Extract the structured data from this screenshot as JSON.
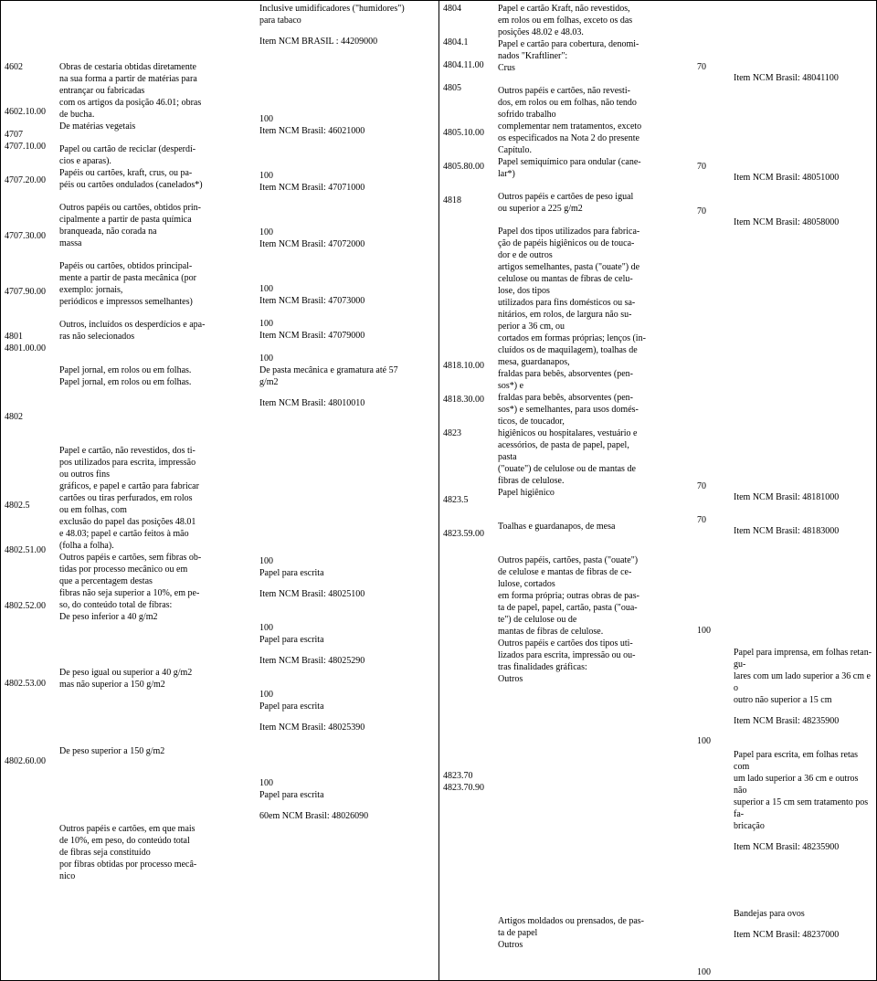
{
  "left": {
    "codes": [
      {
        "gap": 64,
        "t": "4602"
      },
      {
        "gap": 36,
        "t": "4602.10.00"
      },
      {
        "gap": 12,
        "t": "4707"
      },
      {
        "gap": 0,
        "t": "4707.10.00"
      },
      {
        "gap": 24,
        "t": "4707.20.00"
      },
      {
        "gap": 48,
        "t": "4707.30.00"
      },
      {
        "gap": 48,
        "t": "4707.90.00"
      },
      {
        "gap": 36,
        "t": "4801"
      },
      {
        "gap": 0,
        "t": "4801.00.00"
      },
      {
        "gap": 62,
        "t": "4802"
      },
      {
        "gap": 84,
        "t": "4802.5"
      },
      {
        "gap": 36,
        "t": "4802.51.00"
      },
      {
        "gap": 48,
        "t": "4802.52.00"
      },
      {
        "gap": 72,
        "t": "4802.53.00"
      },
      {
        "gap": 72,
        "t": "4802.60.00"
      }
    ],
    "descs": [
      {
        "gap": 64,
        "lines": [
          "Obras de cestaria obtidas diretamente",
          "na sua forma a partir de matérias para",
          "entrançar ou fabricadas",
          "com os artigos da posição 46.01; obras",
          "de bucha."
        ]
      },
      {
        "gap": 0,
        "lines": [
          "De matérias vegetais"
        ]
      },
      {
        "gap": 12,
        "lines": [
          "Papel ou cartão de reciclar (desperdí-",
          "cios e aparas)."
        ]
      },
      {
        "gap": 0,
        "lines": [
          "Papéis ou cartões, kraft, crus, ou pa-",
          "péis ou cartões ondulados (canelados*)"
        ]
      },
      {
        "gap": 12,
        "lines": [
          "Outros papéis ou cartões, obtidos prin-",
          "cipalmente a partir de pasta química",
          "branqueada, não corada na",
          "massa"
        ]
      },
      {
        "gap": 12,
        "lines": [
          "Papéis ou cartões, obtidos principal-",
          "mente a partir de pasta mecânica (por",
          "exemplo: jornais,",
          "periódicos e impressos semelhantes)"
        ]
      },
      {
        "gap": 12,
        "lines": [
          "Outros, incluídos os desperdícios e apa-",
          "ras não selecionados"
        ]
      },
      {
        "gap": 24,
        "lines": [
          "Papel jornal, em rolos ou em folhas."
        ]
      },
      {
        "gap": 0,
        "lines": [
          "Papel jornal, em rolos ou em folhas."
        ]
      },
      {
        "gap": 62,
        "lines": [
          "Papel e cartão, não revestidos, dos ti-",
          "pos utilizados para escrita, impressão",
          "ou outros fins",
          "gráficos, e papel e cartão para fabricar",
          "cartões ou tiras perfurados, em rolos",
          "ou em folhas, com",
          "exclusão do papel das posições 48.01",
          "e 48.03; papel e cartão feitos à mão",
          "(folha a folha)."
        ]
      },
      {
        "gap": 0,
        "lines": [
          "Outros papéis e cartões, sem fibras ob-",
          "tidas por processo mecânico ou em",
          "que a percentagem destas",
          "fibras não seja superior a 10%, em pe-",
          "so, do conteúdo total de fibras:"
        ]
      },
      {
        "gap": 0,
        "lines": [
          "De peso inferior a 40 g/m2"
        ]
      },
      {
        "gap": 48,
        "lines": [
          "De peso igual ou superior a 40 g/m2",
          "mas não superior a 150 g/m2"
        ]
      },
      {
        "gap": 60,
        "lines": [
          "De peso superior a 150 g/m2"
        ]
      },
      {
        "gap": 72,
        "lines": [
          "Outros papéis e cartões, em que mais",
          "de 10%, em peso, do conteúdo total",
          "de fibras seja constituído",
          "por fibras obtidas por processo mecâ-",
          "nico"
        ]
      }
    ],
    "qtyNcm": [
      {
        "gap": 0,
        "lines": [
          "Inclusive umidificadores (\"humidores\")",
          "para tabaco"
        ]
      },
      {
        "gap": 10,
        "lines": [
          "Item NCM BRASIL : 44209000"
        ]
      },
      {
        "gap": 72,
        "qty": "100"
      },
      {
        "gap": 0,
        "lines": [
          "Item NCM Brasil: 46021000"
        ]
      },
      {
        "gap": 36,
        "qty": "100"
      },
      {
        "gap": 0,
        "lines": [
          "Item NCM Brasil: 47071000"
        ]
      },
      {
        "gap": 36,
        "qty": "100"
      },
      {
        "gap": 0,
        "lines": [
          "Item NCM Brasil: 47072000"
        ]
      },
      {
        "gap": 36,
        "qty": "100"
      },
      {
        "gap": 0,
        "lines": [
          "Item NCM Brasil: 47073000"
        ]
      },
      {
        "gap": 12,
        "qty": "100"
      },
      {
        "gap": 0,
        "lines": [
          "Item NCM Brasil: 47079000"
        ]
      },
      {
        "gap": 12,
        "qty": "100"
      },
      {
        "gap": 0,
        "lines": [
          "De pasta mecânica e gramatura até 57",
          "g/m2"
        ]
      },
      {
        "gap": 10,
        "lines": [
          "Item NCM Brasil: 48010010"
        ]
      },
      {
        "gap": 160,
        "qty": "100"
      },
      {
        "gap": 0,
        "lines": [
          "Papel para escrita"
        ]
      },
      {
        "gap": 10,
        "lines": [
          "Item NCM Brasil: 48025100"
        ]
      },
      {
        "gap": 24,
        "qty": "100"
      },
      {
        "gap": 0,
        "lines": [
          "Papel para escrita"
        ]
      },
      {
        "gap": 10,
        "lines": [
          "Item NCM Brasil: 48025290"
        ]
      },
      {
        "gap": 24,
        "qty": "100"
      },
      {
        "gap": 0,
        "lines": [
          "Papel para escrita"
        ]
      },
      {
        "gap": 10,
        "lines": [
          "Item NCM Brasil: 48025390"
        ]
      },
      {
        "gap": 48,
        "qty": "100"
      },
      {
        "gap": 0,
        "lines": [
          "Papel para escrita"
        ]
      },
      {
        "gap": 10,
        "lines": [
          "60em NCM Brasil: 48026090"
        ]
      }
    ]
  },
  "right": {
    "codes": [
      {
        "gap": 0,
        "t": "4804"
      },
      {
        "gap": 24,
        "t": "4804.1"
      },
      {
        "gap": 12,
        "t": "4804.11.00"
      },
      {
        "gap": 12,
        "t": "4805"
      },
      {
        "gap": 36,
        "t": "4805.10.00"
      },
      {
        "gap": 24,
        "t": "4805.80.00"
      },
      {
        "gap": 24,
        "t": "4818"
      },
      {
        "gap": 168,
        "t": "4818.10.00"
      },
      {
        "gap": 24,
        "t": "4818.30.00"
      },
      {
        "gap": 24,
        "t": "4823"
      },
      {
        "gap": 60,
        "t": "4823.5"
      },
      {
        "gap": 24,
        "t": "4823.59.00"
      },
      {
        "gap": 252,
        "t": "4823.70"
      },
      {
        "gap": 0,
        "t": "4823.70.90"
      }
    ],
    "descs": [
      {
        "gap": 0,
        "lines": [
          "Papel e cartão Kraft, não revestidos,",
          "em rolos ou em folhas, exceto os das",
          "posições 48.02 e 48.03."
        ]
      },
      {
        "gap": 0,
        "lines": [
          "Papel e cartão para cobertura, denomi-",
          "nados \"Kraftliner\":"
        ]
      },
      {
        "gap": 0,
        "lines": [
          "Crus"
        ]
      },
      {
        "gap": 12,
        "lines": [
          "Outros papéis e cartões, não revesti-",
          "dos, em rolos ou em folhas, não tendo",
          "sofrido trabalho",
          "complementar nem tratamentos, exceto",
          "os especificados na Nota 2 do presente",
          "Capítulo."
        ]
      },
      {
        "gap": 0,
        "lines": [
          "Papel semiquímico para ondular (cane-",
          "lar*)"
        ]
      },
      {
        "gap": 12,
        "lines": [
          "Outros papéis e cartões de peso igual",
          "ou superior a 225 g/m2"
        ]
      },
      {
        "gap": 12,
        "lines": [
          "Papel dos tipos utilizados para fabrica-",
          "ção de papéis higiênicos ou de touca-",
          "dor e de outros",
          "artigos semelhantes, pasta (\"ouate\") de",
          "celulose ou mantas de fibras de celu-",
          "lose, dos tipos",
          "utilizados para fins domésticos ou sa-",
          "nitários, em rolos, de largura não su-",
          "perior a 36 cm, ou",
          "cortados em formas próprias; lenços (in-",
          "cluídos os de maquilagem), toalhas de",
          "mesa, guardanapos,",
          "fraldas para bebês, absorventes (pen-",
          "sos*) e",
          "fraldas para bebês, absorventes (pen-",
          "sos*) e semelhantes, para usos domés-",
          "ticos, de toucador,",
          "higiênicos ou hospitalares, vestuário e",
          "acessórios, de pasta de papel, papel,",
          "pasta",
          "(\"ouate\") de celulose ou de mantas de",
          "fibras de celulose."
        ]
      },
      {
        "gap": 0,
        "lines": [
          "Papel higiênico"
        ]
      },
      {
        "gap": 24,
        "lines": [
          "Toalhas e guardanapos, de mesa"
        ]
      },
      {
        "gap": 24,
        "lines": [
          "Outros papéis, cartões, pasta (\"ouate\")",
          "de celulose e mantas de fibras de ce-",
          "lulose, cortados",
          "em forma própria; outras obras de pas-",
          "ta de papel, papel, cartão, pasta (\"oua-",
          "te\") de celulose ou de",
          "mantas de fibras de celulose."
        ]
      },
      {
        "gap": 0,
        "lines": [
          "Outros papéis e cartões dos tipos uti-",
          "lizados para escrita, impressão ou ou-",
          "tras finalidades gráficas:"
        ]
      },
      {
        "gap": 0,
        "lines": [
          "Outros"
        ]
      },
      {
        "gap": 252,
        "lines": [
          "Artigos moldados ou prensados, de pas-",
          "ta de papel"
        ]
      },
      {
        "gap": 0,
        "lines": [
          "Outros"
        ]
      }
    ],
    "qtys": [
      {
        "gap": 64,
        "t": "70"
      },
      {
        "gap": 96,
        "t": "70"
      },
      {
        "gap": 36,
        "t": "70"
      },
      {
        "gap": 288,
        "t": "70"
      },
      {
        "gap": 24,
        "t": "70"
      },
      {
        "gap": 108,
        "t": "100"
      },
      {
        "gap": 108,
        "t": "100"
      },
      {
        "gap": 240,
        "t": "100"
      }
    ],
    "ncms": [
      {
        "gap": 76,
        "lines": [
          "Item NCM Brasil: 48041100"
        ]
      },
      {
        "gap": 96,
        "lines": [
          "Item NCM Brasil: 48051000"
        ]
      },
      {
        "gap": 36,
        "lines": [
          "Item NCM Brasil: 48058000"
        ]
      },
      {
        "gap": 288,
        "lines": [
          "Item NCM Brasil: 48181000"
        ]
      },
      {
        "gap": 24,
        "lines": [
          "Item NCM Brasil: 48183000"
        ]
      },
      {
        "gap": 120,
        "lines": [
          "Papel para imprensa, em folhas retan-",
          "gu-",
          "lares com um lado superior a 36 cm e",
          "o",
          "outro não superior a 15 cm"
        ]
      },
      {
        "gap": 10,
        "lines": [
          "Item NCM Brasil: 48235900"
        ]
      },
      {
        "gap": 24,
        "lines": [
          "Papel para escrita, em folhas retas com",
          "um lado superior a 36 cm e outros não",
          "superior a 15 cm sem tratamento pos",
          "fa-",
          "bricação"
        ]
      },
      {
        "gap": 10,
        "lines": [
          "Item NCM Brasil: 48235900"
        ]
      },
      {
        "gap": 60,
        "lines": [
          "Bandejas para ovos"
        ]
      },
      {
        "gap": 10,
        "lines": [
          "Item NCM Brasil: 48237000"
        ]
      }
    ]
  }
}
